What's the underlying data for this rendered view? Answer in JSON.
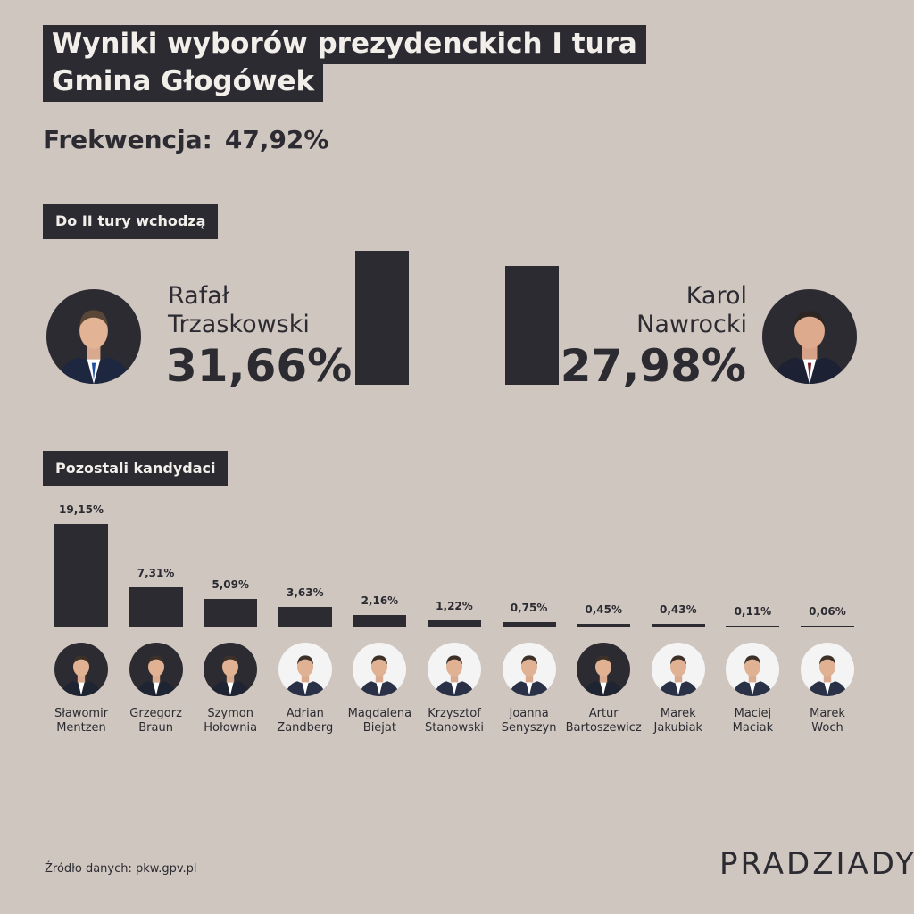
{
  "header": {
    "title_line1": "Wyniki wyborów prezydenckich I tura",
    "title_line2": "Gmina Głogówek"
  },
  "turnout": {
    "label": "Frekwencja:",
    "value": "47,92%"
  },
  "sections": {
    "finalists_label": "Do II tury wchodzą",
    "others_label": "Pozostali kandydaci"
  },
  "finalists": [
    {
      "first": "Rafał",
      "last": "Trzaskowski",
      "pct_label": "31,66%",
      "value": 31.66
    },
    {
      "first": "Karol",
      "last": "Nawrocki",
      "pct_label": "27,98%",
      "value": 27.98
    }
  ],
  "footer": {
    "source": "Źródło danych: pkw.gpv.pl",
    "brand": "PRADZIADY"
  },
  "colors": {
    "background": "#cfc6c0",
    "bar": "#2b2b31",
    "label_bg": "#2b2b31",
    "label_text": "#f2eeea"
  },
  "chart_data": [
    {
      "type": "bar",
      "title": "Do II tury wchodzą",
      "categories": [
        "Rafał Trzaskowski",
        "Karol Nawrocki"
      ],
      "values": [
        31.66,
        27.98
      ]
    },
    {
      "type": "bar",
      "title": "Pozostali kandydaci",
      "categories": [
        "Sławomir Mentzen",
        "Grzegorz Braun",
        "Szymon Hołownia",
        "Adrian Zandberg",
        "Magdalena Biejat",
        "Krzysztof Stanowski",
        "Joanna Senyszyn",
        "Artur Bartoszewicz",
        "Marek Jakubiak",
        "Maciej Maciak",
        "Marek Woch"
      ],
      "values": [
        19.15,
        7.31,
        5.09,
        3.63,
        2.16,
        1.22,
        0.75,
        0.45,
        0.43,
        0.11,
        0.06
      ],
      "value_labels": [
        "19,15%",
        "7,31%",
        "5,09%",
        "3,63%",
        "2,16%",
        "1,22%",
        "0,75%",
        "0,45%",
        "0,43%",
        "0,11%",
        "0,06%"
      ],
      "name_lines": [
        [
          "Sławomir",
          "Mentzen"
        ],
        [
          "Grzegorz",
          "Braun"
        ],
        [
          "Szymon",
          "Hołownia"
        ],
        [
          "Adrian",
          "Zandberg"
        ],
        [
          "Magdalena",
          "Biejat"
        ],
        [
          "Krzysztof",
          "Stanowski"
        ],
        [
          "Joanna",
          "Senyszyn"
        ],
        [
          "Artur",
          "Bartoszewicz"
        ],
        [
          "Marek",
          "Jakubiak"
        ],
        [
          "Maciej",
          "Maciak"
        ],
        [
          "Marek",
          "Woch"
        ]
      ],
      "photo_bg": [
        "dark",
        "dark",
        "dark",
        "light",
        "light",
        "light",
        "light",
        "dark",
        "light",
        "light",
        "light"
      ]
    }
  ]
}
